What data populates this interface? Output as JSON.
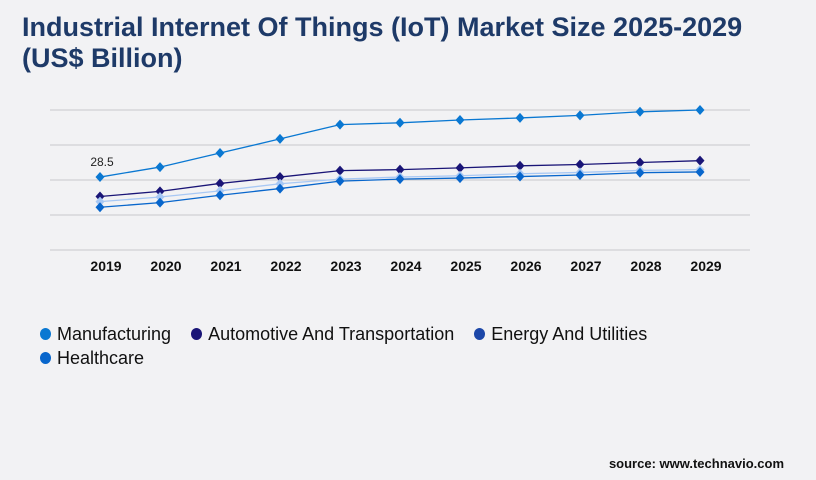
{
  "title": "Industrial Internet Of Things (IoT) Market Size 2025-2029 (US$ Billion)",
  "source": "source: www.technavio.com",
  "chart_data": {
    "type": "line",
    "title": "Industrial Internet Of Things (IoT) Market Size 2025-2029 (US$ Billion)",
    "categories": [
      "2019",
      "2020",
      "2021",
      "2022",
      "2023",
      "2024",
      "2025",
      "2026",
      "2027",
      "2028",
      "2029"
    ],
    "ylim": [
      0,
      54.7
    ],
    "grid": true,
    "legend_position": "bottom",
    "annotations": [
      {
        "series": "Manufacturing",
        "category": "2019",
        "text": "28.5"
      }
    ],
    "series": [
      {
        "name": "Manufacturing",
        "line_color": "#0a78d2",
        "marker_color": "#0a78d2",
        "values": [
          28.5,
          32.4,
          37.9,
          43.4,
          49.0,
          49.7,
          50.8,
          51.6,
          52.6,
          54.0,
          54.7
        ]
      },
      {
        "name": "Automotive And Transportation",
        "line_color": "#1a1577",
        "marker_color": "#1a1577",
        "values": [
          20.9,
          22.9,
          26.0,
          28.5,
          31.0,
          31.4,
          32.1,
          32.9,
          33.4,
          34.2,
          34.9
        ]
      },
      {
        "name": "Energy And Utilities",
        "line_color": "#a8c8f4",
        "marker_color": "#a8c8f4",
        "legend_color": "#1c47a8",
        "values": [
          18.9,
          20.7,
          23.1,
          25.9,
          27.7,
          28.5,
          29.0,
          29.8,
          30.3,
          31.1,
          31.4
        ]
      },
      {
        "name": "Healthcare",
        "line_color": "#0866cc",
        "marker_color": "#0866cc",
        "values": [
          16.7,
          18.5,
          21.4,
          24.0,
          26.9,
          27.7,
          28.1,
          28.7,
          29.3,
          30.2,
          30.5
        ]
      }
    ]
  }
}
